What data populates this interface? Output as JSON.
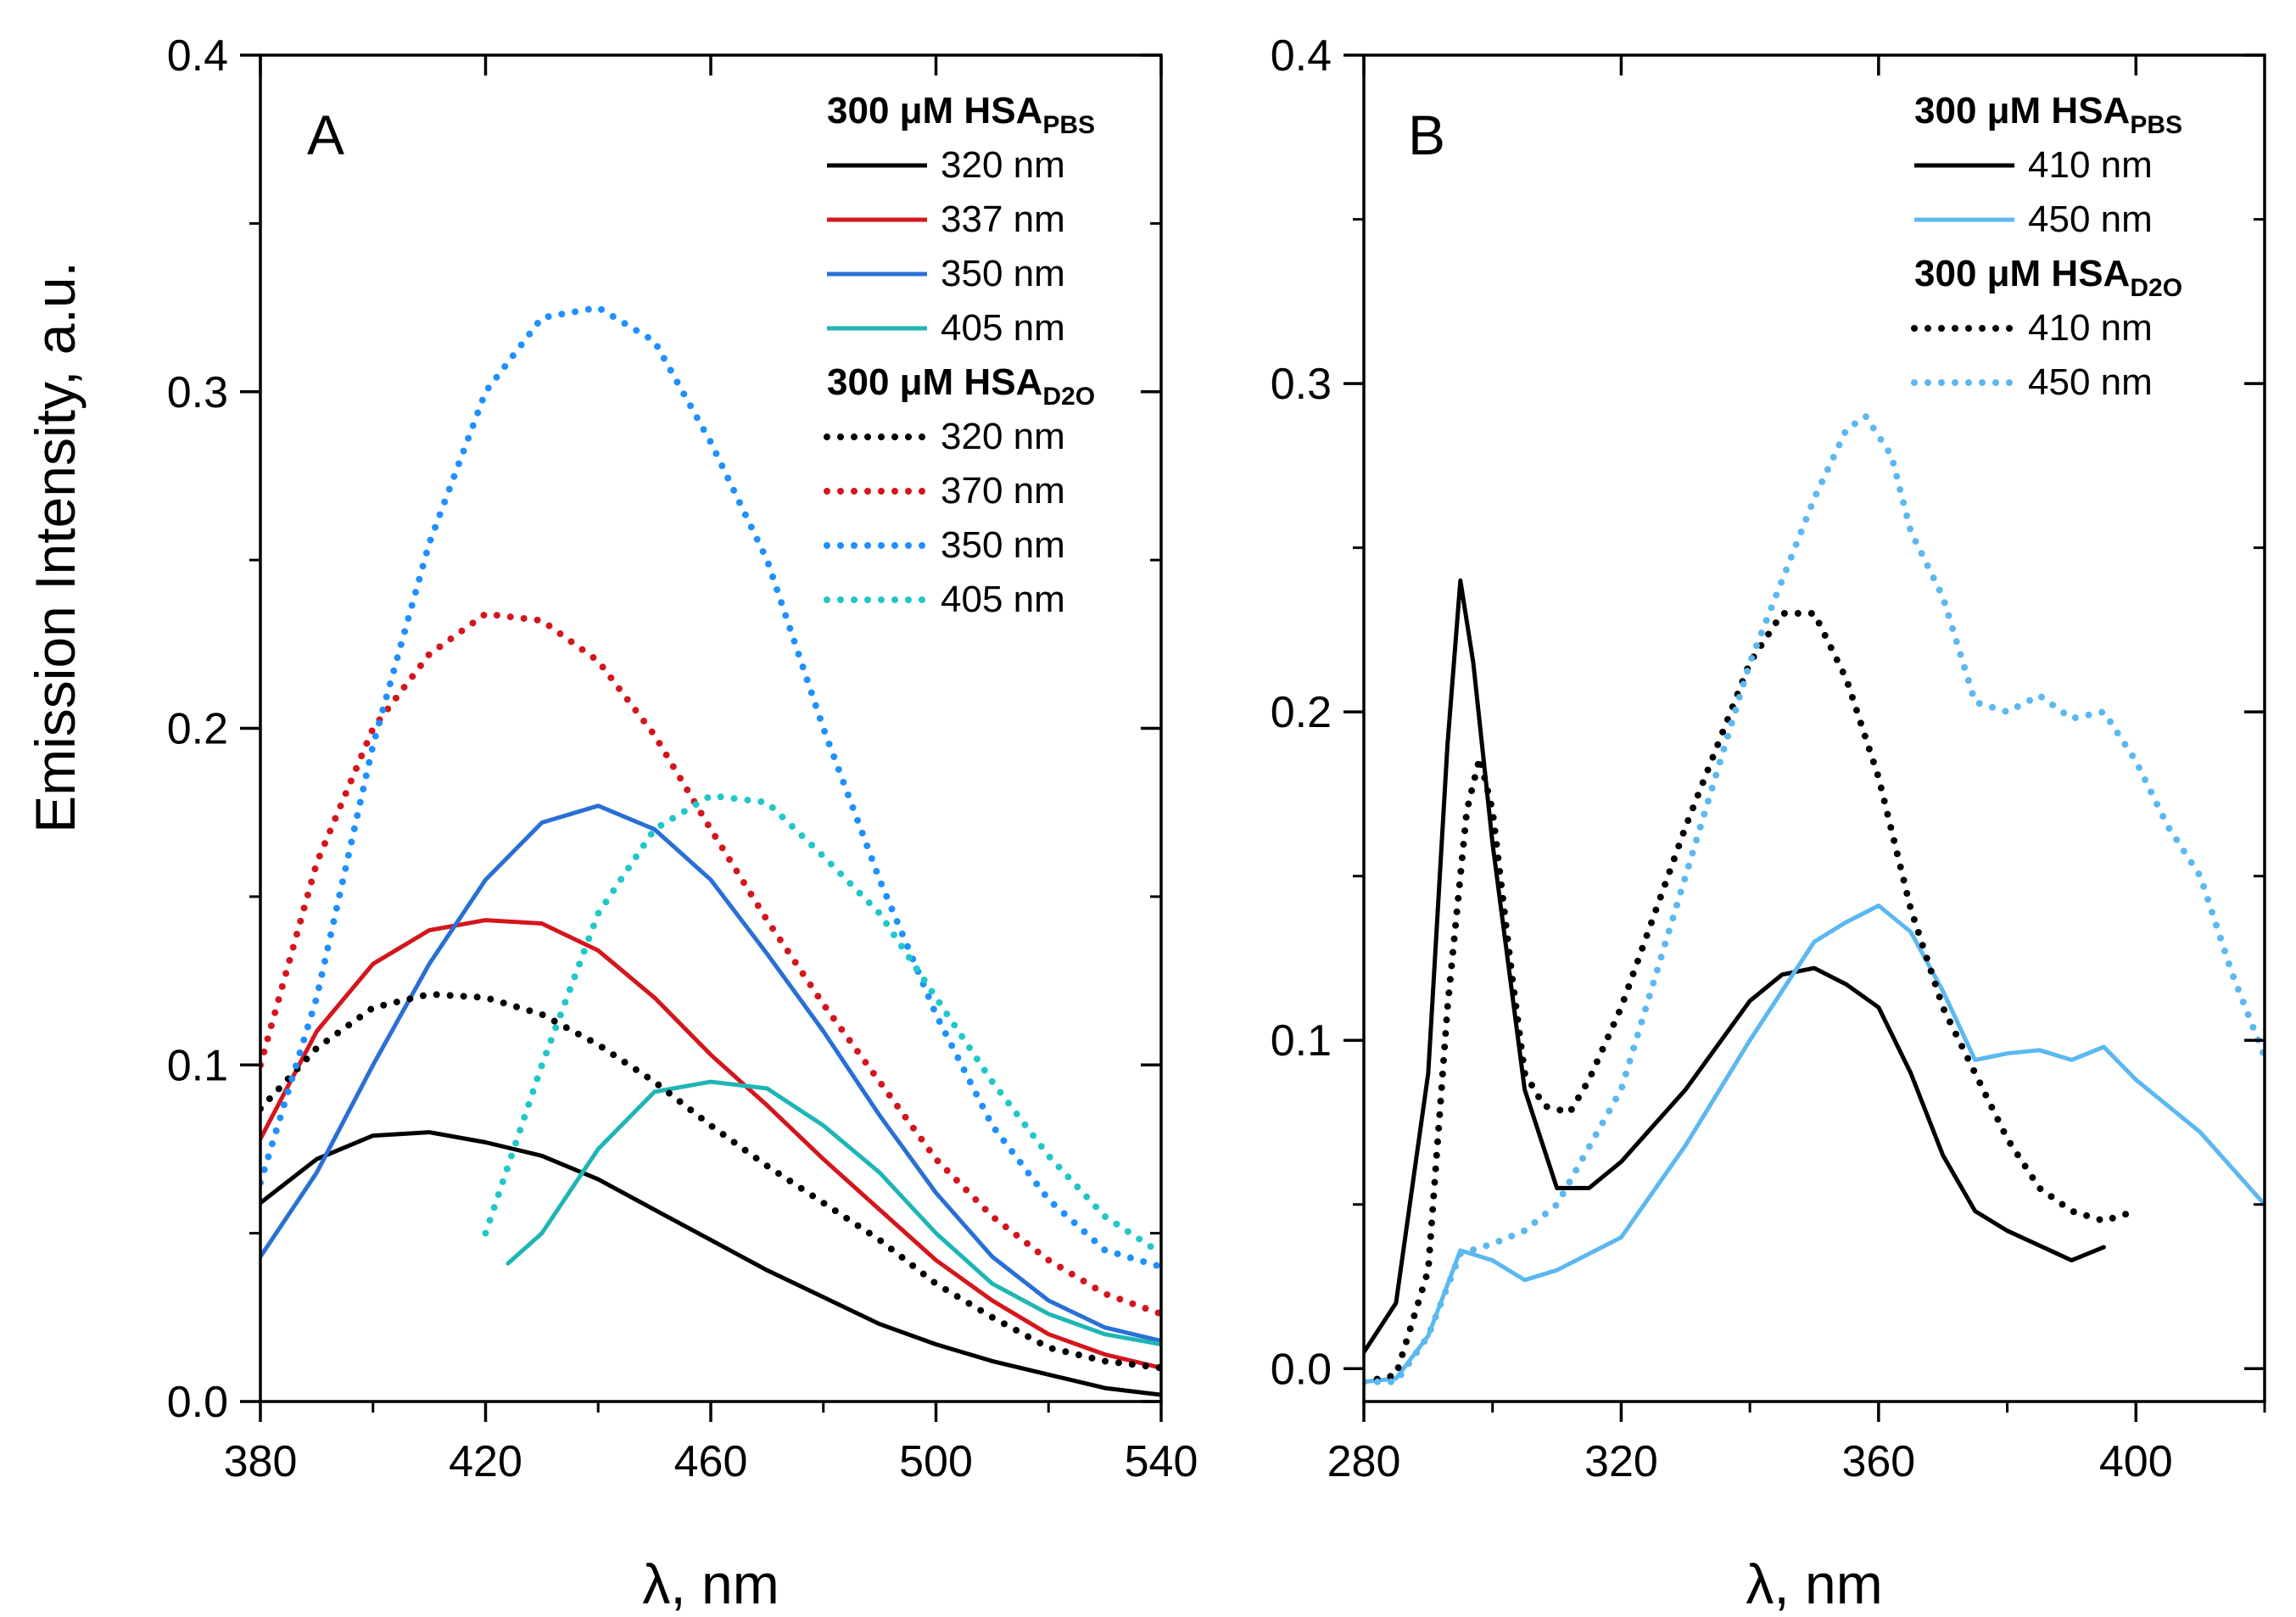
{
  "y_axis_title": "Emission Intensity, a.u.",
  "chart_data": [
    {
      "type": "line",
      "panel": "A",
      "xlabel": "λ, nm",
      "ylabel": "Emission Intensity, a.u.",
      "xlim": [
        380,
        540
      ],
      "ylim": [
        0,
        0.4
      ],
      "xticks": [
        380,
        420,
        460,
        500,
        540
      ],
      "yticks": [
        0.0,
        0.1,
        0.2,
        0.3,
        0.4
      ],
      "xtick_labels": [
        "380",
        "420",
        "460",
        "500",
        "540"
      ],
      "ytick_labels": [
        "0.0",
        "0.1",
        "0.2",
        "0.3",
        "0.4"
      ],
      "legend_groups": [
        {
          "header": "300 μM HSA",
          "sub": "PBS",
          "entries": [
            {
              "label": "320 nm",
              "color": "#000000",
              "style": "solid"
            },
            {
              "label": "337 nm",
              "color": "#d4161c",
              "style": "solid"
            },
            {
              "label": "350 nm",
              "color": "#2a6fd6",
              "style": "solid"
            },
            {
              "label": "405 nm",
              "color": "#1fb5b5",
              "style": "solid"
            }
          ]
        },
        {
          "header": "300 μM HSA",
          "sub": "D2O",
          "entries": [
            {
              "label": "320 nm",
              "color": "#000000",
              "style": "dotted"
            },
            {
              "label": "370 nm",
              "color": "#d4161c",
              "style": "dotted"
            },
            {
              "label": "350 nm",
              "color": "#1e90ff",
              "style": "dotted"
            },
            {
              "label": "405 nm",
              "color": "#21c7c7",
              "style": "dotted"
            }
          ]
        }
      ],
      "series": [
        {
          "name": "PBS 320 nm",
          "color": "#000000",
          "style": "solid",
          "x": [
            380,
            390,
            400,
            410,
            420,
            430,
            440,
            450,
            460,
            470,
            480,
            490,
            500,
            510,
            520,
            530,
            540
          ],
          "y": [
            0.059,
            0.072,
            0.079,
            0.08,
            0.077,
            0.073,
            0.066,
            0.057,
            0.048,
            0.039,
            0.031,
            0.023,
            0.017,
            0.012,
            0.008,
            0.004,
            0.002
          ]
        },
        {
          "name": "PBS 337 nm",
          "color": "#d4161c",
          "style": "solid",
          "x": [
            380,
            390,
            400,
            410,
            420,
            430,
            440,
            450,
            460,
            470,
            480,
            490,
            500,
            510,
            520,
            530,
            540
          ],
          "y": [
            0.078,
            0.11,
            0.13,
            0.14,
            0.143,
            0.142,
            0.134,
            0.12,
            0.103,
            0.088,
            0.072,
            0.057,
            0.042,
            0.03,
            0.02,
            0.014,
            0.01
          ]
        },
        {
          "name": "PBS 350 nm",
          "color": "#2a6fd6",
          "style": "solid",
          "x": [
            380,
            390,
            400,
            410,
            420,
            430,
            440,
            450,
            460,
            470,
            480,
            490,
            500,
            510,
            520,
            530,
            540
          ],
          "y": [
            0.043,
            0.068,
            0.1,
            0.13,
            0.155,
            0.172,
            0.177,
            0.17,
            0.155,
            0.133,
            0.11,
            0.085,
            0.062,
            0.043,
            0.03,
            0.022,
            0.018
          ]
        },
        {
          "name": "PBS 405 nm",
          "color": "#1fb5b5",
          "style": "solid",
          "x": [
            424,
            430,
            440,
            450,
            460,
            470,
            480,
            490,
            500,
            510,
            520,
            530,
            540
          ],
          "y": [
            0.041,
            0.05,
            0.075,
            0.092,
            0.095,
            0.093,
            0.082,
            0.068,
            0.05,
            0.035,
            0.026,
            0.02,
            0.017
          ]
        },
        {
          "name": "D2O 320 nm",
          "color": "#000000",
          "style": "dotted",
          "x": [
            380,
            390,
            400,
            410,
            420,
            430,
            440,
            450,
            460,
            470,
            480,
            490,
            500,
            510,
            520,
            530,
            540
          ],
          "y": [
            0.087,
            0.105,
            0.117,
            0.121,
            0.12,
            0.115,
            0.106,
            0.095,
            0.082,
            0.07,
            0.059,
            0.048,
            0.035,
            0.025,
            0.016,
            0.012,
            0.01
          ]
        },
        {
          "name": "D2O 370 nm",
          "color": "#d4161c",
          "style": "dotted",
          "x": [
            380,
            390,
            400,
            410,
            420,
            430,
            440,
            450,
            460,
            470,
            480,
            490,
            500,
            510,
            520,
            530,
            540
          ],
          "y": [
            0.1,
            0.16,
            0.2,
            0.222,
            0.234,
            0.232,
            0.22,
            0.198,
            0.17,
            0.143,
            0.118,
            0.095,
            0.072,
            0.055,
            0.042,
            0.032,
            0.026
          ]
        },
        {
          "name": "D2O 350 nm",
          "color": "#1e90ff",
          "style": "dotted",
          "x": [
            380,
            390,
            400,
            410,
            420,
            430,
            440,
            450,
            460,
            470,
            480,
            490,
            500,
            510,
            520,
            530,
            540
          ],
          "y": [
            0.065,
            0.12,
            0.195,
            0.255,
            0.3,
            0.322,
            0.325,
            0.315,
            0.285,
            0.25,
            0.2,
            0.155,
            0.115,
            0.082,
            0.06,
            0.045,
            0.04
          ]
        },
        {
          "name": "D2O 405 nm",
          "color": "#21c7c7",
          "style": "dotted",
          "x": [
            420,
            430,
            440,
            450,
            460,
            470,
            480,
            490,
            500,
            510,
            520,
            530,
            540
          ],
          "y": [
            0.05,
            0.1,
            0.145,
            0.17,
            0.18,
            0.178,
            0.162,
            0.145,
            0.12,
            0.095,
            0.073,
            0.055,
            0.044
          ]
        }
      ]
    },
    {
      "type": "line",
      "panel": "B",
      "xlabel": "λ, nm",
      "ylabel": "",
      "xlim": [
        280,
        420
      ],
      "ylim": [
        -0.01,
        0.4
      ],
      "xticks": [
        280,
        320,
        360,
        400
      ],
      "yticks": [
        0.0,
        0.1,
        0.2,
        0.3,
        0.4
      ],
      "xtick_labels": [
        "280",
        "320",
        "360",
        "400"
      ],
      "ytick_labels": [
        "0.0",
        "0.1",
        "0.2",
        "0.3",
        "0.4"
      ],
      "legend_groups": [
        {
          "header": "300 μM HSA",
          "sub": "PBS",
          "entries": [
            {
              "label": "410 nm",
              "color": "#000000",
              "style": "solid"
            },
            {
              "label": "450 nm",
              "color": "#5bb8f0",
              "style": "solid"
            }
          ]
        },
        {
          "header": "300 μM HSA",
          "sub": "D2O",
          "entries": [
            {
              "label": "410 nm",
              "color": "#000000",
              "style": "dotted"
            },
            {
              "label": "450 nm",
              "color": "#5bb8f0",
              "style": "dotted"
            }
          ]
        }
      ],
      "series": [
        {
          "name": "PBS 410 nm",
          "color": "#000000",
          "style": "solid",
          "x": [
            280,
            285,
            290,
            293,
            295,
            297,
            300,
            305,
            310,
            315,
            320,
            330,
            340,
            345,
            350,
            355,
            360,
            365,
            370,
            375,
            380,
            390,
            395
          ],
          "y": [
            0.005,
            0.02,
            0.09,
            0.19,
            0.24,
            0.215,
            0.16,
            0.085,
            0.055,
            0.055,
            0.063,
            0.085,
            0.112,
            0.12,
            0.122,
            0.117,
            0.11,
            0.09,
            0.065,
            0.048,
            0.042,
            0.033,
            0.037
          ]
        },
        {
          "name": "PBS 450 nm",
          "color": "#5bb8f0",
          "style": "solid",
          "x": [
            280,
            285,
            290,
            295,
            300,
            305,
            310,
            320,
            330,
            340,
            350,
            355,
            360,
            365,
            370,
            375,
            380,
            385,
            390,
            395,
            400,
            410,
            420
          ],
          "y": [
            -0.004,
            -0.003,
            0.01,
            0.036,
            0.033,
            0.027,
            0.03,
            0.04,
            0.068,
            0.1,
            0.13,
            0.136,
            0.141,
            0.133,
            0.115,
            0.094,
            0.096,
            0.097,
            0.094,
            0.098,
            0.088,
            0.072,
            0.05
          ]
        },
        {
          "name": "D2O 410 nm",
          "color": "#000000",
          "style": "dotted",
          "x": [
            280,
            285,
            290,
            293,
            296,
            298,
            300,
            303,
            305,
            308,
            312,
            315,
            320,
            330,
            340,
            345,
            350,
            355,
            360,
            365,
            370,
            375,
            380,
            385,
            390,
            395,
            400
          ],
          "y": [
            -0.004,
            -0.002,
            0.03,
            0.11,
            0.17,
            0.186,
            0.17,
            0.12,
            0.09,
            0.08,
            0.078,
            0.088,
            0.11,
            0.165,
            0.215,
            0.23,
            0.23,
            0.21,
            0.18,
            0.14,
            0.11,
            0.09,
            0.07,
            0.055,
            0.048,
            0.045,
            0.048
          ]
        },
        {
          "name": "D2O 450 nm",
          "color": "#5bb8f0",
          "style": "dotted",
          "x": [
            280,
            285,
            290,
            295,
            300,
            305,
            310,
            320,
            330,
            340,
            350,
            355,
            358,
            362,
            365,
            370,
            375,
            380,
            385,
            390,
            395,
            400,
            405,
            410,
            415,
            420
          ],
          "y": [
            -0.004,
            -0.004,
            0.01,
            0.035,
            0.038,
            0.042,
            0.05,
            0.085,
            0.15,
            0.215,
            0.265,
            0.286,
            0.29,
            0.278,
            0.255,
            0.235,
            0.203,
            0.2,
            0.205,
            0.198,
            0.2,
            0.185,
            0.165,
            0.15,
            0.12,
            0.095
          ]
        }
      ]
    }
  ]
}
